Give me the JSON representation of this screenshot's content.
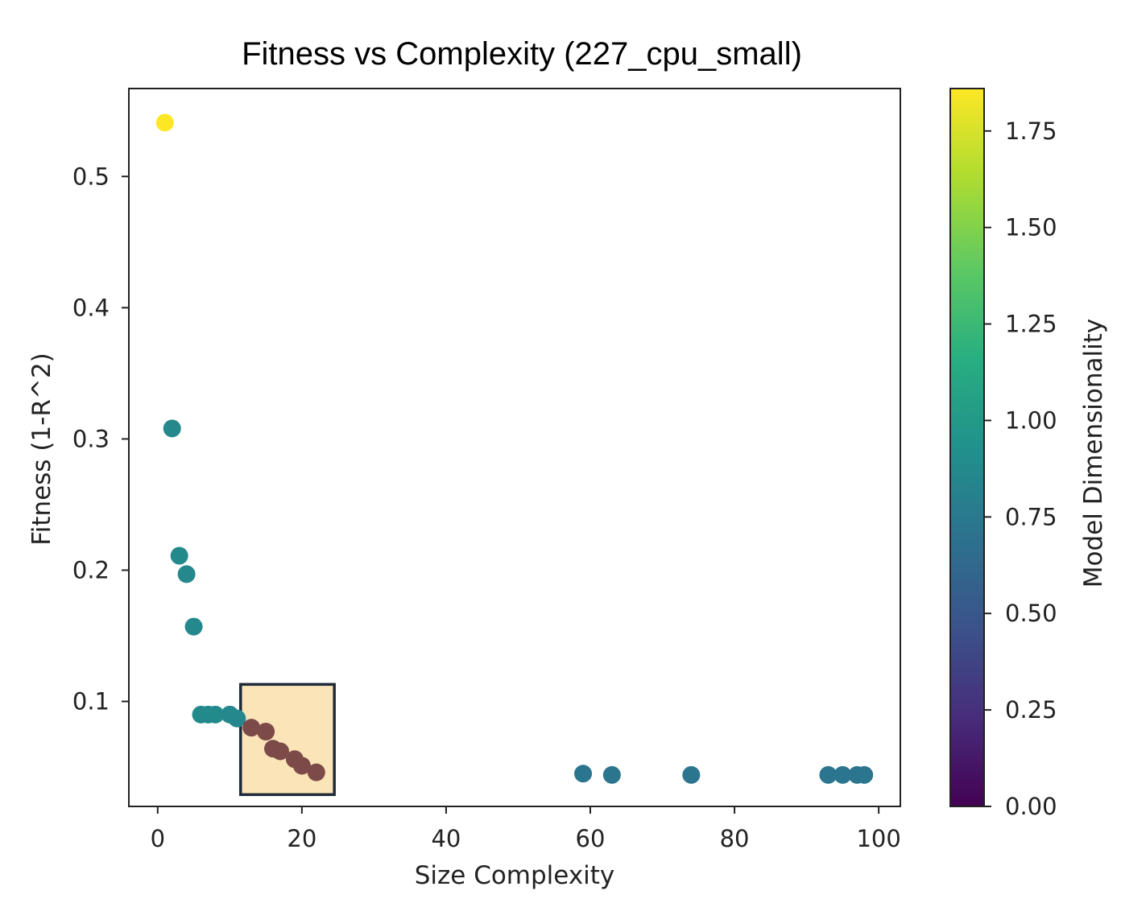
{
  "chart_data": {
    "type": "scatter",
    "title": "Fitness vs Complexity (227_cpu_small)",
    "xlabel": "Size Complexity",
    "ylabel": "Fitness (1-R^2)",
    "xlim": [
      -4,
      103
    ],
    "ylim": [
      0.02,
      0.567
    ],
    "xticks": [
      0,
      20,
      40,
      60,
      80,
      100
    ],
    "yticks": [
      0.1,
      0.2,
      0.3,
      0.4,
      0.5
    ],
    "colorbar": {
      "label": "Model Dimensionality",
      "range": [
        0,
        1.86
      ],
      "ticks": [
        "0.00",
        "0.25",
        "0.50",
        "0.75",
        "1.00",
        "1.25",
        "1.50",
        "1.75"
      ]
    },
    "points": [
      {
        "x": 1,
        "y": 0.541,
        "c": 1.86
      },
      {
        "x": 2,
        "y": 0.308,
        "c": 0.86
      },
      {
        "x": 3,
        "y": 0.211,
        "c": 0.88
      },
      {
        "x": 4,
        "y": 0.197,
        "c": 0.86
      },
      {
        "x": 5,
        "y": 0.157,
        "c": 0.86
      },
      {
        "x": 6,
        "y": 0.09,
        "c": 0.88
      },
      {
        "x": 7,
        "y": 0.09,
        "c": 0.88
      },
      {
        "x": 8,
        "y": 0.09,
        "c": 0.88
      },
      {
        "x": 10,
        "y": 0.09,
        "c": 0.86
      },
      {
        "x": 11,
        "y": 0.087,
        "c": 0.86
      },
      {
        "x": 13,
        "y": 0.08,
        "c": 0.86
      },
      {
        "x": 15,
        "y": 0.077,
        "c": 0.86
      },
      {
        "x": 16,
        "y": 0.064,
        "c": 0.86
      },
      {
        "x": 17,
        "y": 0.062,
        "c": 0.86
      },
      {
        "x": 19,
        "y": 0.056,
        "c": 0.86
      },
      {
        "x": 20,
        "y": 0.051,
        "c": 0.86
      },
      {
        "x": 22,
        "y": 0.046,
        "c": 0.86
      },
      {
        "x": 59,
        "y": 0.045,
        "c": 0.72
      },
      {
        "x": 63,
        "y": 0.044,
        "c": 0.72
      },
      {
        "x": 74,
        "y": 0.044,
        "c": 0.72
      },
      {
        "x": 93,
        "y": 0.044,
        "c": 0.72
      },
      {
        "x": 95,
        "y": 0.044,
        "c": 0.72
      },
      {
        "x": 97,
        "y": 0.044,
        "c": 0.72
      },
      {
        "x": 98,
        "y": 0.044,
        "c": 0.72
      }
    ],
    "highlight": {
      "x_range": [
        11.5,
        24.5
      ],
      "y_range": [
        0.029,
        0.113
      ],
      "fill": "#fbe5b8",
      "stroke": "#1f2a38",
      "points_x_range": [
        12,
        23
      ],
      "point_color": "#7d4a4a"
    }
  }
}
